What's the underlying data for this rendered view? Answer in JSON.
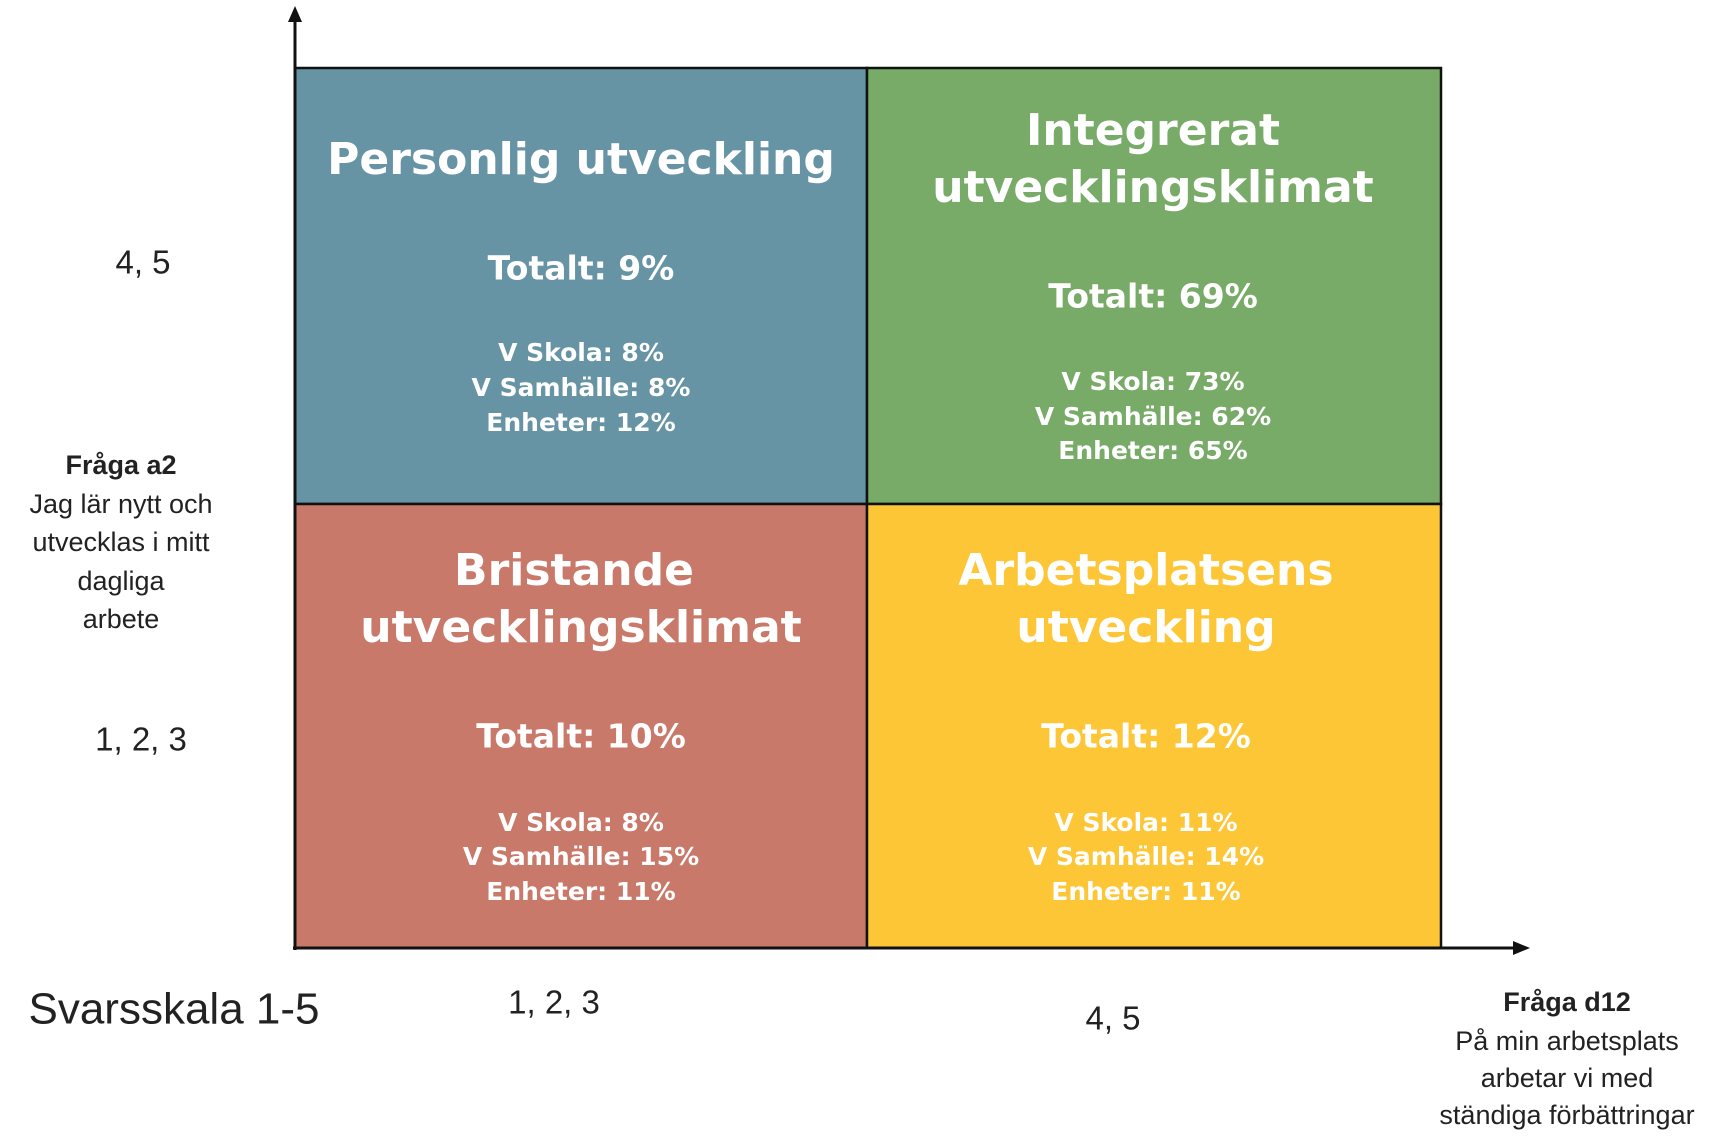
{
  "y_axis": {
    "title": "Fråga a2",
    "description": [
      "Jag lär nytt och",
      "utvecklas i mitt",
      "dagliga",
      "arbete"
    ],
    "levels": [
      "4, 5",
      "1, 2, 3"
    ]
  },
  "x_axis": {
    "title": "Fråga d12",
    "description": [
      "På min arbetsplats",
      "arbetar vi med",
      "ständiga förbättringar"
    ],
    "levels": [
      "1, 2, 3",
      "4, 5"
    ]
  },
  "scale_label": "Svarsskala 1-5",
  "quadrants": [
    {
      "title": [
        "Personlig utveckling"
      ],
      "total": "Totalt: 9%",
      "details": [
        "V Skola: 8%",
        "V Samhälle: 8%",
        "Enheter: 12%"
      ]
    },
    {
      "title": [
        "Integrerat",
        "utvecklingsklimat"
      ],
      "total": "Totalt: 69%",
      "details": [
        "V Skola: 73%",
        "V Samhälle: 62%",
        "Enheter: 65%"
      ]
    },
    {
      "title": [
        "Bristande",
        "utvecklingsklimat"
      ],
      "total": "Totalt: 10%",
      "details": [
        "V Skola: 8%",
        "V Samhälle: 15%",
        "Enheter: 11%"
      ]
    },
    {
      "title": [
        "Arbetsplatsens",
        "utveckling"
      ],
      "total": "Totalt: 12%",
      "details": [
        "V Skola: 11%",
        "V Samhälle: 14%",
        "Enheter: 11%"
      ]
    }
  ]
}
